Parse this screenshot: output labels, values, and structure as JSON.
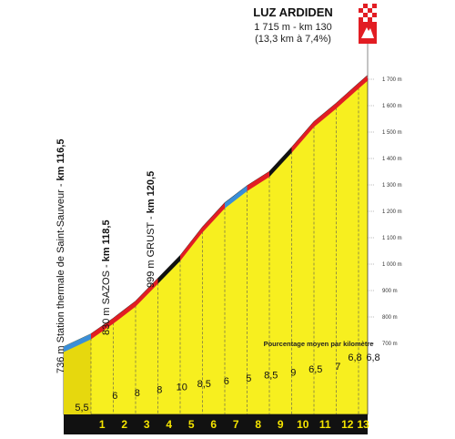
{
  "summit": {
    "name": "LUZ ARDIDEN",
    "line1": "1 715 m - km 130",
    "line2": "(13,3 km à 7,4%)"
  },
  "legend": "Pourcentage moyen par kilomètre",
  "waypoints": [
    {
      "prefix": "736 m Station thermale de Saint-Sauveur - ",
      "km": "km 116,5"
    },
    {
      "prefix": "830 m SAZOS - ",
      "km": "km 118,5"
    },
    {
      "prefix": "999 m GRUST - ",
      "km": "km 120,5"
    }
  ],
  "chart_data": {
    "type": "area",
    "title": "LUZ ARDIDEN",
    "xlabel": "",
    "ylabel": "",
    "ylim": [
      650,
      1715
    ],
    "y_ticks": [
      "700 m",
      "800 m",
      "900 m",
      "1 000 m",
      "1 100 m",
      "1 200 m",
      "1 300 m",
      "1 400 m",
      "1 500 m",
      "1 600 m",
      "1 700 m"
    ],
    "y_tick_values": [
      700,
      800,
      900,
      1000,
      1100,
      1200,
      1300,
      1400,
      1500,
      1600,
      1700
    ],
    "km_labels": [
      "1",
      "2",
      "3",
      "4",
      "5",
      "6",
      "7",
      "8",
      "9",
      "10",
      "11",
      "12",
      "13"
    ],
    "gradients": [
      "5,5",
      "6",
      "8",
      "8",
      "10",
      "8,5",
      "6",
      "5",
      "8,5",
      "9",
      "6,5",
      "7",
      "6,8",
      "6,8"
    ],
    "gradient_values": [
      5.5,
      6,
      8,
      8,
      10,
      8.5,
      6,
      5,
      8.5,
      9,
      6.5,
      7,
      6.8,
      6.8
    ],
    "segment_colors": [
      "blue",
      "red",
      "red",
      "red",
      "black",
      "red",
      "red",
      "blue",
      "red",
      "black",
      "red",
      "red",
      "red",
      "red"
    ],
    "colors": {
      "blue": "#3a8ed8",
      "red": "#e21d23",
      "black": "#111111",
      "fill": "#f7ef1f",
      "left_face": "#e6d80e",
      "base": "#111111",
      "base_text": "#f5e400"
    }
  }
}
